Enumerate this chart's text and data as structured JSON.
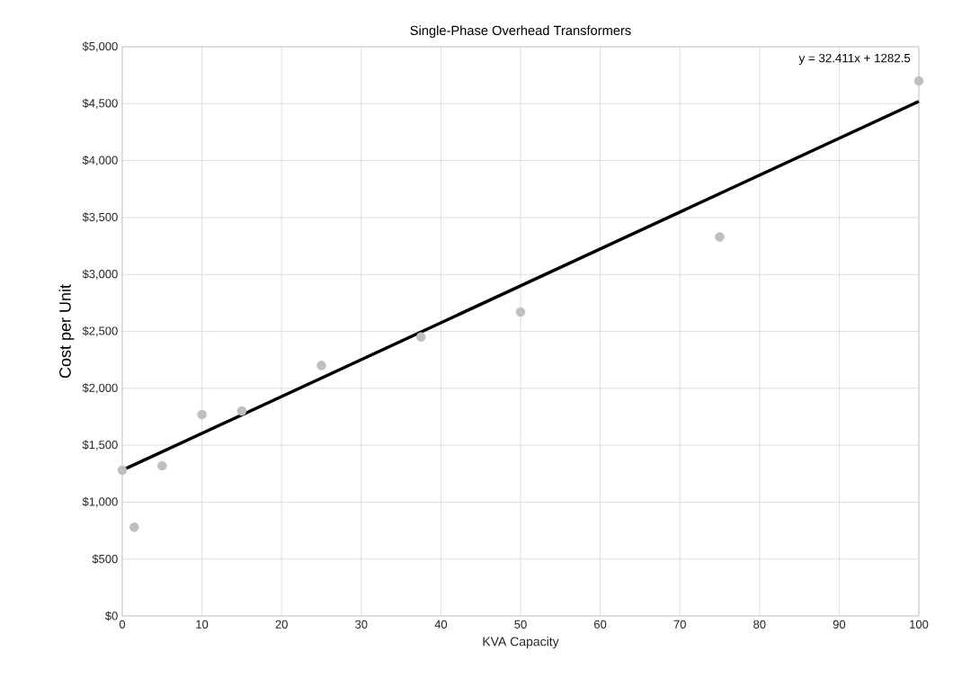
{
  "chart_data": {
    "type": "scatter",
    "title": "Single-Phase Overhead Transformers",
    "xlabel": "KVA Capacity",
    "ylabel": "Cost per Unit",
    "series": [
      {
        "color": "#bfbfbf",
        "marker": "circle",
        "x": [
          0,
          1.5,
          5,
          10,
          15,
          25,
          37.5,
          50,
          75,
          100
        ],
        "values": [
          1280,
          780,
          1320,
          1770,
          1800,
          2200,
          2450,
          2670,
          3330,
          4700
        ]
      },
      {
        "type": "line",
        "marker": "none",
        "color": "#000000",
        "x": [
          0,
          100
        ],
        "values": [
          1280,
          4520
        ]
      }
    ],
    "xlim": [
      0,
      100
    ],
    "xticks": [
      0,
      10,
      20,
      30,
      40,
      50,
      60,
      70,
      80,
      90,
      100
    ],
    "ylim": [
      0,
      5000
    ],
    "yticks": [
      {
        "value": 0,
        "label": "$0"
      },
      {
        "value": 500,
        "label": "$500"
      },
      {
        "value": 1000,
        "label": "$1,000"
      },
      {
        "value": 1500,
        "label": "$1,500"
      },
      {
        "value": 2000,
        "label": "$2,000"
      },
      {
        "value": 2500,
        "label": "$2,500"
      },
      {
        "value": 3000,
        "label": "$3,000"
      },
      {
        "value": 3500,
        "label": "$3,500"
      },
      {
        "value": 4000,
        "label": "$4,000"
      },
      {
        "value": 4500,
        "label": "$4,500"
      },
      {
        "value": 5000,
        "label": "$5,000"
      }
    ],
    "grid": true,
    "annotations": [
      "y = 32.411x + 1282.5"
    ]
  }
}
